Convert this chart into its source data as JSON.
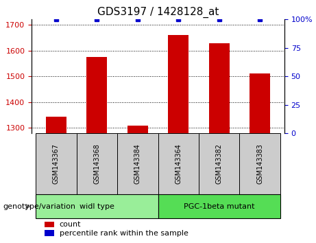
{
  "title": "GDS3197 / 1428128_at",
  "samples": [
    "GSM143367",
    "GSM143368",
    "GSM143384",
    "GSM143364",
    "GSM143382",
    "GSM143383"
  ],
  "bar_values": [
    1345,
    1575,
    1310,
    1660,
    1628,
    1510
  ],
  "percentile_values": [
    100,
    100,
    100,
    100,
    100,
    100
  ],
  "ylim_left": [
    1280,
    1720
  ],
  "ylim_right": [
    0,
    100
  ],
  "yticks_left": [
    1300,
    1400,
    1500,
    1600,
    1700
  ],
  "yticks_right": [
    0,
    25,
    50,
    75,
    100
  ],
  "bar_color": "#cc0000",
  "percentile_color": "#0000cc",
  "grid_color": "#000000",
  "groups": [
    {
      "label": "widl type",
      "indices": [
        0,
        1,
        2
      ],
      "color": "#99ee99"
    },
    {
      "label": "PGC-1beta mutant",
      "indices": [
        3,
        4,
        5
      ],
      "color": "#55dd55"
    }
  ],
  "group_label": "genotype/variation",
  "legend_count_label": "count",
  "legend_percentile_label": "percentile rank within the sample",
  "sample_col_bg": "#cccccc",
  "title_fontsize": 12,
  "tick_fontsize": 9,
  "label_fontsize": 9
}
